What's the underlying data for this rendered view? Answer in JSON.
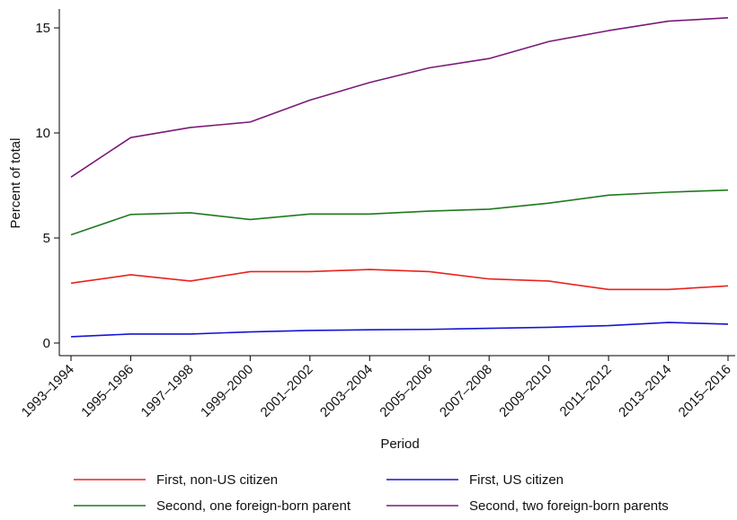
{
  "chart_data": {
    "type": "line",
    "title": "",
    "xlabel": "Period",
    "ylabel": "Percent of total",
    "categories": [
      "1993–1994",
      "1995–1996",
      "1997–1998",
      "1999–2000",
      "2001–2002",
      "2003–2004",
      "2005–2006",
      "2007–2008",
      "2009–2010",
      "2011–2012",
      "2013–2014",
      "2015–2016"
    ],
    "yticks": [
      0,
      5,
      10,
      15
    ],
    "ylim": [
      -0.6,
      15.9
    ],
    "grid": false,
    "legend_position": "bottom",
    "series": [
      {
        "name": "First, non-US citizen",
        "color": "#e8231f",
        "values": [
          2.85,
          3.25,
          2.95,
          3.4,
          3.4,
          3.5,
          3.4,
          3.05,
          2.95,
          2.55,
          2.55,
          2.72
        ]
      },
      {
        "name": "First, US citizen",
        "color": "#1515d4",
        "values": [
          0.3,
          0.43,
          0.43,
          0.53,
          0.6,
          0.63,
          0.65,
          0.7,
          0.75,
          0.83,
          0.98,
          0.9
        ]
      },
      {
        "name": "Second, one foreign-born parent",
        "color": "#1e7a1e",
        "values": [
          5.15,
          6.12,
          6.2,
          5.88,
          6.14,
          6.14,
          6.28,
          6.37,
          6.66,
          7.04,
          7.18,
          7.28
        ]
      },
      {
        "name": "Second, two foreign-born parents",
        "color": "#7a1a7a",
        "values": [
          7.9,
          9.78,
          10.26,
          10.52,
          11.56,
          12.4,
          13.1,
          13.54,
          14.35,
          14.87,
          15.32,
          15.48
        ]
      }
    ]
  }
}
